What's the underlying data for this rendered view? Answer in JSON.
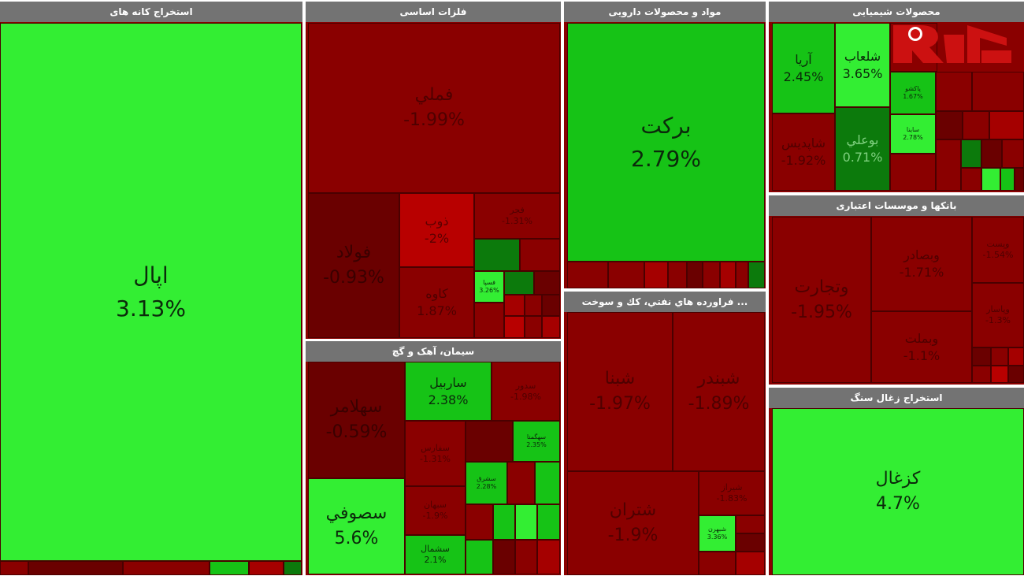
{
  "sectors": {
    "iron_ore": {
      "title": "استخراج کانه های"
    },
    "base_metals": {
      "title": "فلزات اساسی"
    },
    "pharma": {
      "title": "مواد و محصولات دارویی"
    },
    "chemicals": {
      "title": "محصولات شیمیایی"
    },
    "banks": {
      "title": "بانکها و موسسات اعتباری"
    },
    "oil": {
      "title": "... فراورده هاي نفتي، كك و سوخت"
    },
    "cement": {
      "title": "سیمان، آهک و گچ"
    },
    "coal": {
      "title": "استخراج زغال سنگ"
    }
  },
  "tiles": {
    "opal": {
      "symbol": "اپال",
      "change": "3.13%"
    },
    "famli": {
      "symbol": "فملي",
      "change": "-1.99%"
    },
    "foolad": {
      "symbol": "فولاد",
      "change": "-0.93%"
    },
    "zob": {
      "symbol": "ذوب",
      "change": "-2%"
    },
    "kaveh": {
      "symbol": "كاوه",
      "change": "1.87%"
    },
    "fajr": {
      "symbol": "فجر",
      "change": "-1.31%"
    },
    "fosbahan": {
      "symbol": "فسپا",
      "change": "3.26%"
    },
    "barekat": {
      "symbol": "بركت",
      "change": "2.79%"
    },
    "aria": {
      "symbol": "آريا",
      "change": "2.45%"
    },
    "shelab": {
      "symbol": "شلعاب",
      "change": "3.65%"
    },
    "pakshoo": {
      "symbol": "پاكشو",
      "change": "1.67%"
    },
    "savina": {
      "symbol": "ساينا",
      "change": "2.78%"
    },
    "boali": {
      "symbol": "بوعلي",
      "change": "0.71%"
    },
    "shapdis": {
      "symbol": "شاپديس",
      "change": "-1.92%"
    },
    "tejarat": {
      "symbol": "وتجارت",
      "change": "-1.95%"
    },
    "vbsader": {
      "symbol": "وبصادر",
      "change": "-1.71%"
    },
    "vbmellat": {
      "symbol": "وبملت",
      "change": "-1.1%"
    },
    "vpost": {
      "symbol": "وپست",
      "change": "-1.54%"
    },
    "vpasar": {
      "symbol": "وپاسار",
      "change": "-1.3%"
    },
    "shana": {
      "symbol": "شبنا",
      "change": "-1.97%"
    },
    "shbandar": {
      "symbol": "شبندر",
      "change": "-1.89%"
    },
    "shtran": {
      "symbol": "شتران",
      "change": "-1.9%"
    },
    "shiraz": {
      "symbol": "شيراز",
      "change": "-1.83%"
    },
    "shbhran": {
      "symbol": "شبهرن",
      "change": "3.36%"
    },
    "sahlamar": {
      "symbol": "سهلامر",
      "change": "-0.59%"
    },
    "sofi": {
      "symbol": "سصوفي",
      "change": "5.6%"
    },
    "sardbil": {
      "symbol": "ساربيل",
      "change": "2.38%"
    },
    "sdor": {
      "symbol": "سدور",
      "change": "-1.98%"
    },
    "sharqi": {
      "symbol": "سشرق",
      "change": "2.28%"
    },
    "sahgmatan": {
      "symbol": "سهگمتا",
      "change": "2.35%"
    },
    "sfars": {
      "symbol": "سفارس",
      "change": "-1.31%"
    },
    "sbhan": {
      "symbol": "سبهان",
      "change": "-1.9%"
    },
    "shomal": {
      "symbol": "سشمال",
      "change": "2.1%"
    },
    "kazghal": {
      "symbol": "كزغال",
      "change": "4.7%"
    }
  },
  "logo": {
    "icon": "rokna-logo"
  },
  "colors": {
    "gain_bright": "#33ee33",
    "gain": "#16c316",
    "gain_dark": "#0c7a0c",
    "loss": "#8a0000",
    "header": "#737373"
  }
}
